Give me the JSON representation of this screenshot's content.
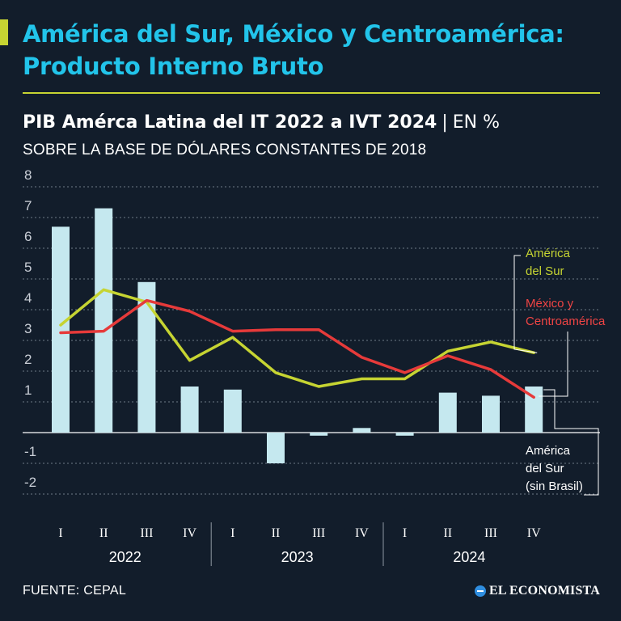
{
  "header": {
    "title": "América del Sur, México y Centroamérica: Producto Interno Bruto",
    "subtitle_bold": "PIB Amérca Latina del IT 2022 a IVT 2024",
    "subtitle_separator": "|",
    "subtitle_unit": "EN %",
    "subtitle_line2": "SOBRE LA BASE DE DÓLARES CONSTANTES DE 2018"
  },
  "footer": {
    "source": "FUENTE: CEPAL",
    "brand": "EL ECONOMISTA"
  },
  "colors": {
    "background": "#121d2b",
    "accent": "#c6d432",
    "title": "#22c4ea",
    "bars": "#c5e8ef",
    "south_america": "#c6d432",
    "mexico": "#e63a3a"
  },
  "chart_data": {
    "type": "bar",
    "categories": [
      "I",
      "II",
      "III",
      "IV",
      "I",
      "II",
      "III",
      "IV",
      "I",
      "II",
      "III",
      "IV"
    ],
    "year_groups": [
      {
        "label": "2022",
        "start": 0,
        "end": 3
      },
      {
        "label": "2023",
        "start": 4,
        "end": 7
      },
      {
        "label": "2024",
        "start": 8,
        "end": 11
      }
    ],
    "ylim": [
      -2,
      8
    ],
    "yticks": [
      "-2",
      "-1",
      "",
      "1",
      "2",
      "3",
      "4",
      "5",
      "6",
      "7",
      "8"
    ],
    "ytick_values": [
      -2,
      -1,
      0,
      1,
      2,
      3,
      4,
      5,
      6,
      7,
      8
    ],
    "grid": true,
    "series": [
      {
        "name": "América del Sur (sin Brasil)",
        "type": "bar",
        "label_lines": [
          "América",
          "del Sur",
          "(sin Brasil)"
        ],
        "values": [
          6.7,
          7.3,
          4.9,
          1.5,
          1.4,
          -1.0,
          -0.1,
          0.15,
          -0.1,
          1.3,
          1.2,
          1.5
        ]
      },
      {
        "name": "América del Sur",
        "type": "line",
        "label_lines": [
          "América",
          "del Sur"
        ],
        "values": [
          3.5,
          4.65,
          4.25,
          2.35,
          3.1,
          1.95,
          1.5,
          1.75,
          1.75,
          2.65,
          2.95,
          2.6
        ]
      },
      {
        "name": "México y Centroamérica",
        "type": "line",
        "label_lines": [
          "México y",
          "Centroamérica"
        ],
        "values": [
          3.25,
          3.3,
          4.3,
          3.95,
          3.3,
          3.35,
          3.35,
          2.45,
          1.95,
          2.5,
          2.05,
          1.15
        ]
      }
    ]
  }
}
